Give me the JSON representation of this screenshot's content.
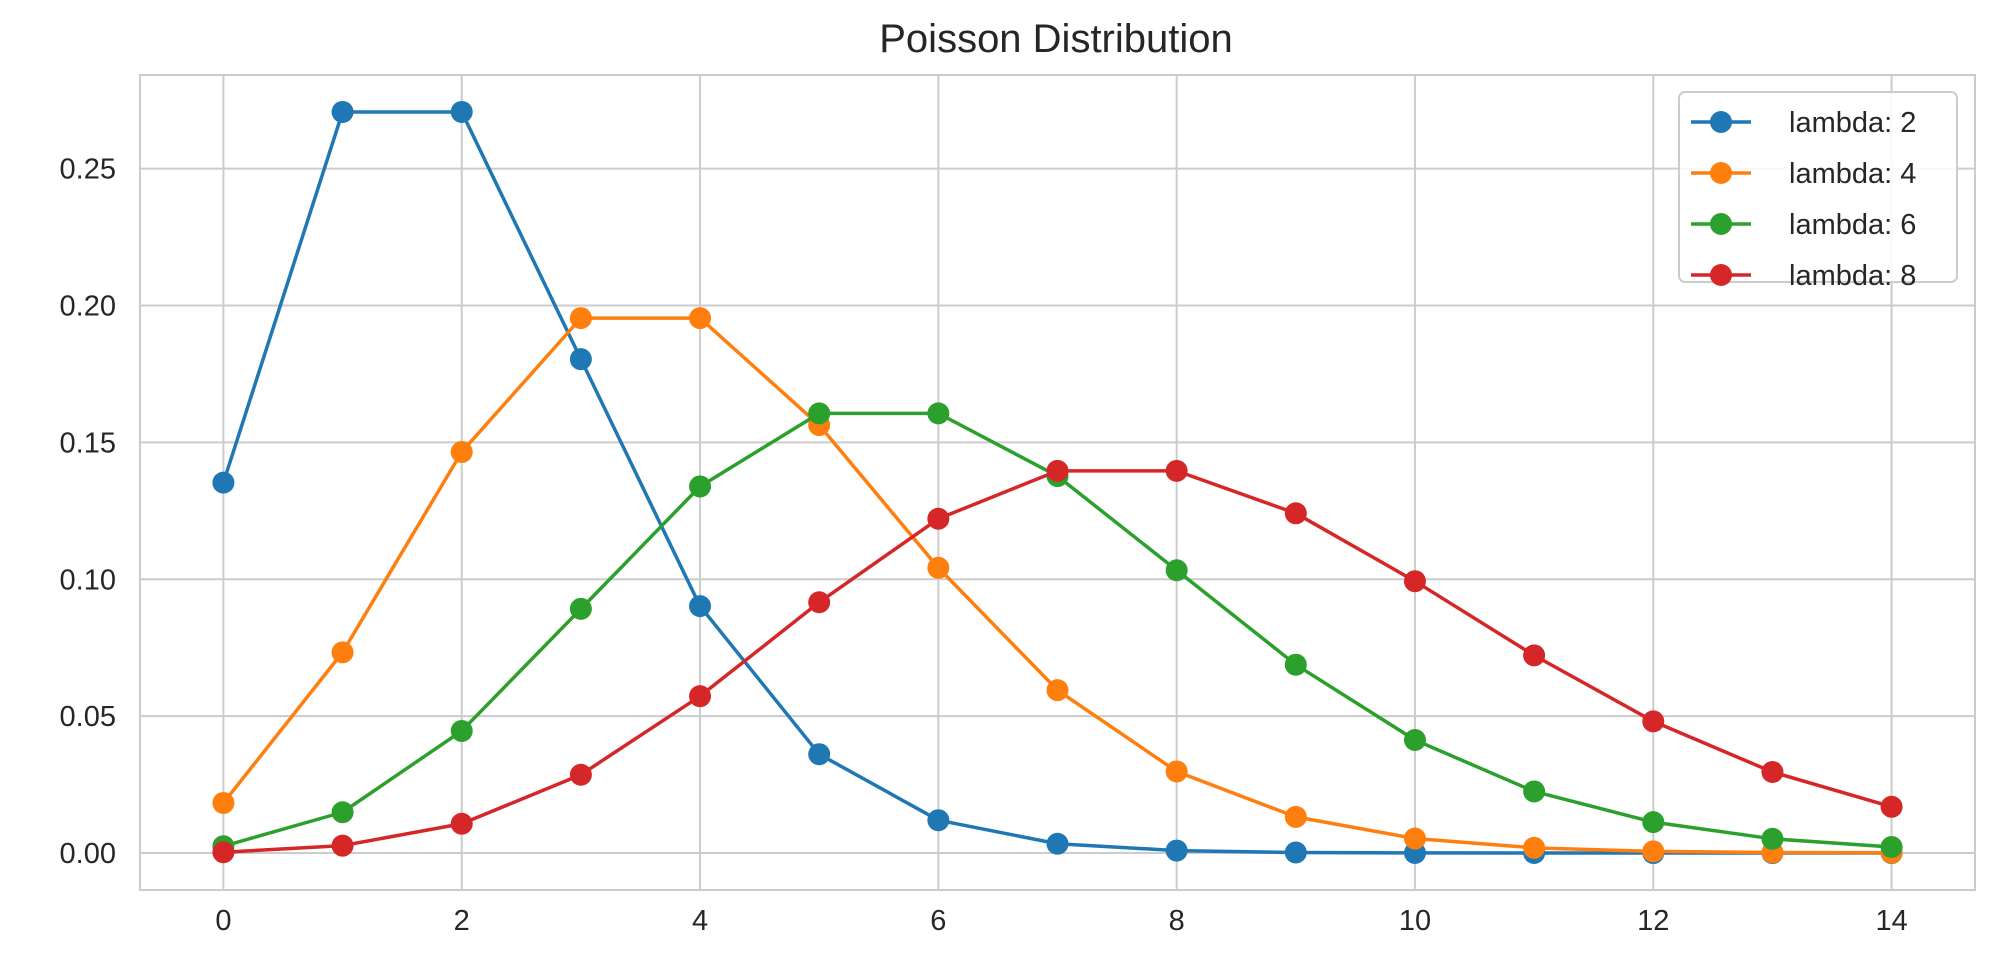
{
  "chart_data": {
    "type": "line",
    "title": "Poisson Distribution",
    "xlabel": "",
    "ylabel": "",
    "x": [
      0,
      1,
      2,
      3,
      4,
      5,
      6,
      7,
      8,
      9,
      10,
      11,
      12,
      13,
      14
    ],
    "xlim": [
      -0.7,
      14.7
    ],
    "ylim": [
      -0.0135,
      0.2842
    ],
    "xticks": [
      0,
      2,
      4,
      6,
      8,
      10,
      12,
      14
    ],
    "xtick_labels": [
      "0",
      "2",
      "4",
      "6",
      "8",
      "10",
      "12",
      "14"
    ],
    "yticks": [
      0.0,
      0.05,
      0.1,
      0.15,
      0.2,
      0.25
    ],
    "ytick_labels": [
      "0.00",
      "0.05",
      "0.10",
      "0.15",
      "0.20",
      "0.25"
    ],
    "grid": true,
    "legend_position": "top-right",
    "series": [
      {
        "name": "lambda: 2",
        "color": "#1f77b4",
        "values": [
          0.1353,
          0.2707,
          0.2707,
          0.1804,
          0.0902,
          0.0361,
          0.012,
          0.0034,
          0.0009,
          0.0002,
          4e-05,
          1e-05,
          0.0,
          0.0,
          0.0
        ]
      },
      {
        "name": "lambda: 4",
        "color": "#ff7f0e",
        "values": [
          0.0183,
          0.0733,
          0.1465,
          0.1954,
          0.1954,
          0.1563,
          0.1042,
          0.0595,
          0.0298,
          0.0132,
          0.0053,
          0.0019,
          0.0006,
          0.0002,
          0.0001
        ]
      },
      {
        "name": "lambda: 6",
        "color": "#2ca02c",
        "values": [
          0.0025,
          0.0149,
          0.0446,
          0.0892,
          0.1339,
          0.1606,
          0.1606,
          0.1377,
          0.1033,
          0.0688,
          0.0413,
          0.0225,
          0.0113,
          0.0052,
          0.0022
        ]
      },
      {
        "name": "lambda: 8",
        "color": "#d62728",
        "values": [
          0.0003,
          0.0027,
          0.0107,
          0.0286,
          0.0573,
          0.0916,
          0.1221,
          0.1396,
          0.1396,
          0.1241,
          0.0993,
          0.0722,
          0.0481,
          0.0296,
          0.0169
        ]
      }
    ]
  }
}
